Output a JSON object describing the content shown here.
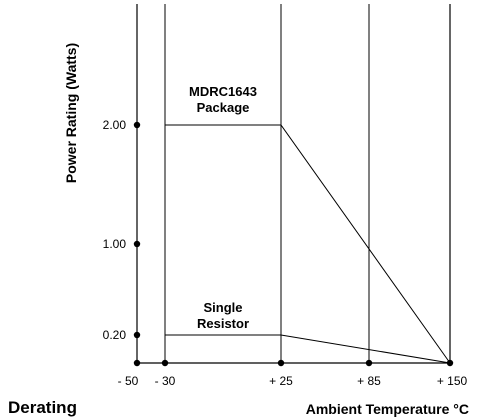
{
  "chart_data": {
    "type": "line",
    "caption": "Derating",
    "xlabel": "Ambient Temperature °C",
    "ylabel": "Power Rating (Watts)",
    "x_ticks": [
      {
        "value": -50,
        "label": "- 50"
      },
      {
        "value": -30,
        "label": "- 30"
      },
      {
        "value": 25,
        "label": "+ 25"
      },
      {
        "value": 85,
        "label": "+ 85"
      },
      {
        "value": 150,
        "label": "+ 150"
      }
    ],
    "y_ticks": [
      {
        "value": 0.2,
        "label": "0.20"
      },
      {
        "value": 1.0,
        "label": "1.00"
      },
      {
        "value": 2.0,
        "label": "2.00"
      }
    ],
    "vertical_gridlines_at": [
      -30,
      25,
      85
    ],
    "series": [
      {
        "name": "MDRC1643 Package",
        "name_lines": [
          "MDRC1643",
          "Package"
        ],
        "points": [
          [
            -30,
            2.0
          ],
          [
            25,
            2.0
          ],
          [
            150,
            0.0
          ]
        ]
      },
      {
        "name": "Single Resistor",
        "name_lines": [
          "Single",
          "Resistor"
        ],
        "points": [
          [
            -30,
            0.2
          ],
          [
            25,
            0.2
          ],
          [
            150,
            0.0
          ]
        ]
      }
    ],
    "dot_markers": {
      "x_axis": [
        -50,
        -30,
        25,
        85,
        150
      ],
      "y_axis": [
        0.2,
        1.0,
        2.0
      ]
    },
    "colors": {
      "line": "#000000",
      "background": "#ffffff"
    }
  }
}
